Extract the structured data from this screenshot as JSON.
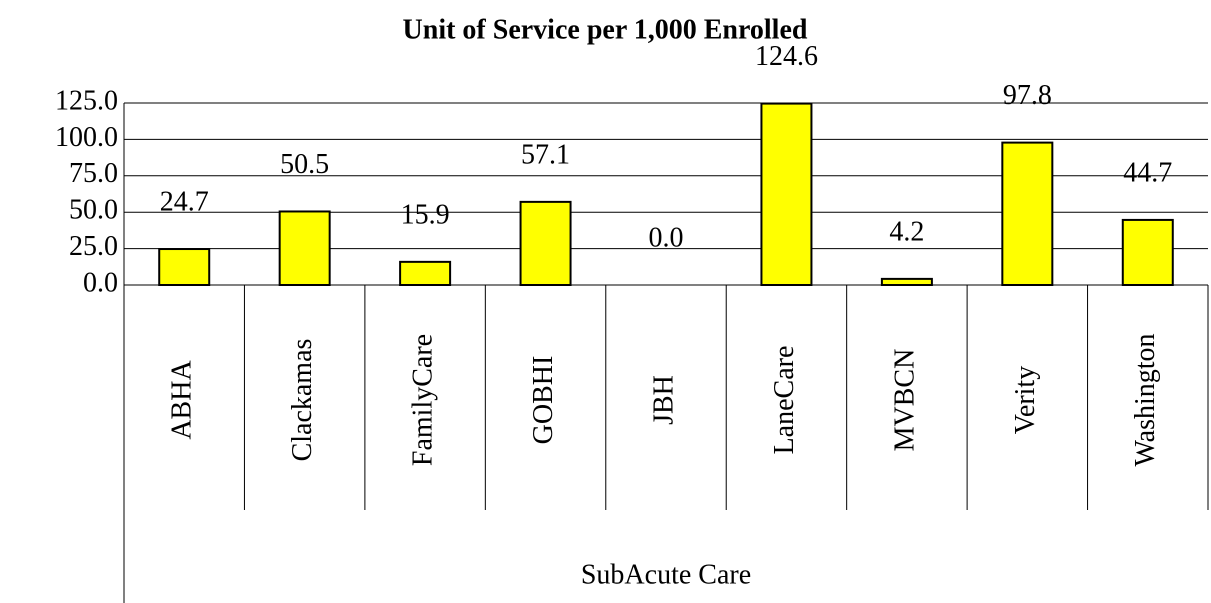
{
  "chart_data": {
    "type": "bar",
    "title": "Unit of Service per 1,000 Enrolled",
    "categories": [
      "ABHA",
      "Clackamas",
      "FamilyCare",
      "GOBHI",
      "JBH",
      "LaneCare",
      "MVBCN",
      "Verity",
      "Washington"
    ],
    "category_group": "SubAcute Care",
    "values": [
      24.7,
      50.5,
      15.9,
      57.1,
      0,
      124.6,
      4.2,
      97.8,
      44.7
    ],
    "value_labels": [
      "24.7",
      "50.5",
      "15.9",
      "57.1",
      "0.0",
      "124.6",
      "4.2",
      "97.8",
      "44.7"
    ],
    "color": "#ffff00",
    "ylim": [
      0,
      125
    ],
    "yticks": [
      {
        "value": 0,
        "label": "0.0"
      },
      {
        "value": 25,
        "label": "25.0"
      },
      {
        "value": 50,
        "label": "50.0"
      },
      {
        "value": 75,
        "label": "75.0"
      },
      {
        "value": 100,
        "label": "100.0"
      },
      {
        "value": 125,
        "label": "125.0"
      }
    ],
    "grid": true
  }
}
